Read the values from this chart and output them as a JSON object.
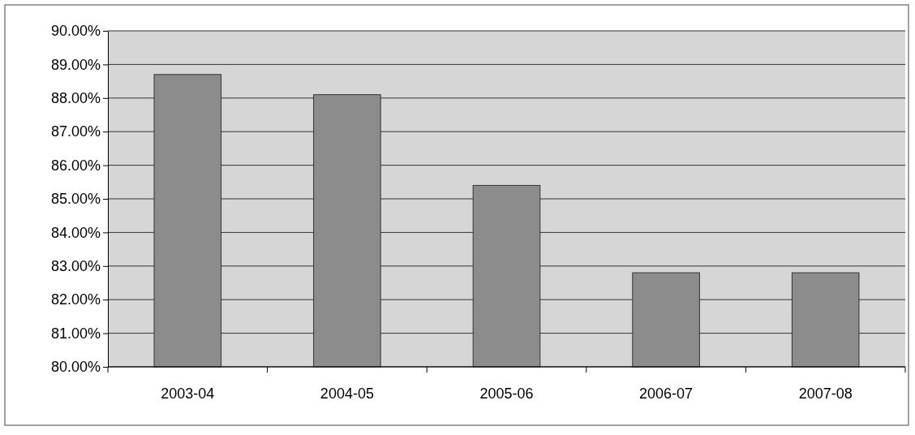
{
  "chart_data": {
    "type": "bar",
    "categories": [
      "2003-04",
      "2004-05",
      "2005-06",
      "2006-07",
      "2007-08"
    ],
    "values": [
      88.7,
      88.1,
      85.4,
      82.8,
      82.8
    ],
    "color": "#8c8c8c",
    "ylim": [
      80,
      90
    ],
    "yticks": [
      {
        "value": 80,
        "label": "80.00%"
      },
      {
        "value": 81,
        "label": "81.00%"
      },
      {
        "value": 82,
        "label": "82.00%"
      },
      {
        "value": 83,
        "label": "83.00%"
      },
      {
        "value": 84,
        "label": "84.00%"
      },
      {
        "value": 85,
        "label": "85.00%"
      },
      {
        "value": 86,
        "label": "86.00%"
      },
      {
        "value": 87,
        "label": "87.00%"
      },
      {
        "value": 88,
        "label": "88.00%"
      },
      {
        "value": 89,
        "label": "89.00%"
      },
      {
        "value": 90,
        "label": "90.00%"
      }
    ],
    "grid": "y"
  }
}
